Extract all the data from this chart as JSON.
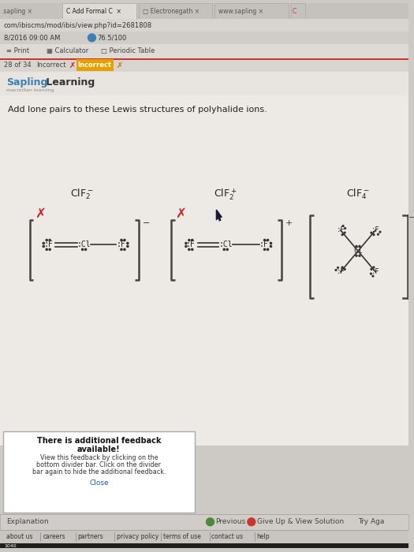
{
  "bg_color": "#cdc9c5",
  "content_bg": "#edeae6",
  "tab_active_bg": "#dedad6",
  "tab_inactive_bg": "#c5c1bd",
  "url_bar_bg": "#d8d4d0",
  "toolbar_bg": "#d0ccc8",
  "print_bar_bg": "#dedad6",
  "incorrect_bar_bg": "#d8d4d0",
  "header_bg": "#e8e4e0",
  "sapling_blue": "#3a7fb5",
  "sapling_green": "#4a8a3a",
  "red_x_color": "#cc2222",
  "orange_highlight": "#e8a000",
  "bracket_color": "#444444",
  "bond_color": "#333333",
  "atom_color": "#222222",
  "dot_color": "#333333",
  "feedback_bg": "#ffffff",
  "footer_bg": "#c8c4c0",
  "bottom_bar_bg": "#d0ccc8",
  "taskbar_bg": "#1e1e1e",
  "dark_red": "#cc3333",
  "tab_texts": [
    ".sapling ×",
    "C Add Formal C ×",
    "□ Electronegath ×",
    "www.sapling ×",
    "C"
  ],
  "url_text": "com/ibiscms/mod/ibis/view.php?id=2681808",
  "time_text": "8/2016 09:00 AM",
  "score_text": "76.5/100",
  "instruction": "Add lone pairs to these Lewis structures of polyhalide ions.",
  "mol1_label": "ClF",
  "mol1_sub": "2",
  "mol1_sup": "−",
  "mol2_label": "ClF",
  "mol2_sub": "2",
  "mol2_sup": "+",
  "mol3_label": "ClF",
  "mol3_sub": "4",
  "mol3_sup": "−",
  "feedback_lines": [
    "There is additional feedback",
    "available!",
    "View this feedback by clicking on the",
    "bottom divider bar. Click on the divider",
    "bar again to hide the additional feedback.",
    "Close"
  ],
  "footer_items": [
    "about us",
    "careers",
    "partners",
    "privacy policy",
    "terms of use",
    "contact us",
    "help"
  ]
}
